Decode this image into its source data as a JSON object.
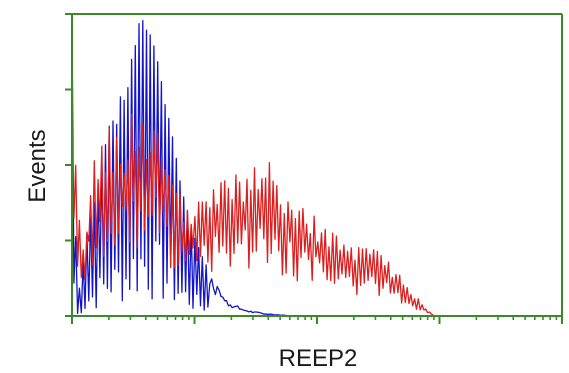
{
  "chart_data": {
    "type": "line",
    "xlabel": "REEP2",
    "ylabel": "Events",
    "x_scale": "log",
    "y_tick_count": 5,
    "grid": false,
    "legend": "none",
    "colors": {
      "axes": "#3a8a2a",
      "blue_series": "#1414c8",
      "red_series": "#dc1e1e"
    },
    "series": [
      {
        "color": "blue",
        "x": [
          0.0,
          0.01,
          0.02,
          0.035,
          0.05,
          0.06,
          0.07,
          0.08,
          0.09,
          0.1,
          0.11,
          0.12,
          0.13,
          0.14,
          0.15,
          0.16,
          0.17,
          0.18,
          0.19,
          0.2,
          0.21,
          0.22,
          0.23,
          0.24,
          0.25,
          0.26,
          0.27,
          0.28,
          0.29,
          0.3,
          0.31,
          0.32,
          0.33,
          0.35,
          0.37,
          0.4,
          0.45
        ],
        "y": [
          1.0,
          0.03,
          0.15,
          0.32,
          0.4,
          0.5,
          0.58,
          0.66,
          0.62,
          0.74,
          0.7,
          0.84,
          0.9,
          1.0,
          0.95,
          0.93,
          0.88,
          0.8,
          0.7,
          0.64,
          0.55,
          0.45,
          0.38,
          0.32,
          0.26,
          0.22,
          0.18,
          0.15,
          0.12,
          0.09,
          0.07,
          0.05,
          0.04,
          0.025,
          0.015,
          0.008,
          0.0
        ]
      },
      {
        "color": "red",
        "x": [
          0.0,
          0.02,
          0.04,
          0.06,
          0.08,
          0.1,
          0.12,
          0.14,
          0.16,
          0.18,
          0.2,
          0.22,
          0.24,
          0.26,
          0.28,
          0.3,
          0.32,
          0.34,
          0.36,
          0.38,
          0.4,
          0.42,
          0.44,
          0.46,
          0.48,
          0.5,
          0.52,
          0.54,
          0.56,
          0.58,
          0.6,
          0.62,
          0.64,
          0.66,
          0.68,
          0.7,
          0.72,
          0.73,
          0.74
        ],
        "y": [
          0.6,
          0.18,
          0.45,
          0.5,
          0.56,
          0.52,
          0.6,
          0.56,
          0.62,
          0.55,
          0.44,
          0.35,
          0.32,
          0.34,
          0.36,
          0.4,
          0.42,
          0.41,
          0.44,
          0.46,
          0.45,
          0.4,
          0.36,
          0.33,
          0.3,
          0.29,
          0.26,
          0.24,
          0.22,
          0.2,
          0.2,
          0.19,
          0.17,
          0.14,
          0.1,
          0.06,
          0.03,
          0.015,
          0.0
        ]
      }
    ]
  }
}
